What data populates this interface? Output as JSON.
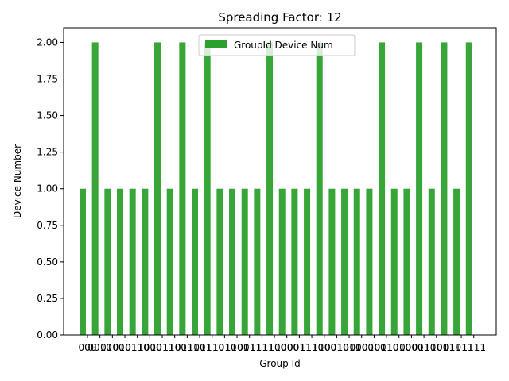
{
  "chart_data": {
    "type": "bar",
    "title": "Spreading Factor: 12",
    "xlabel": "Group Id",
    "ylabel": "Device Number",
    "ylim": [
      0,
      2.1
    ],
    "yticks": [
      "0.00",
      "0.25",
      "0.50",
      "0.75",
      "1.00",
      "1.25",
      "1.50",
      "1.75",
      "2.00"
    ],
    "categories": [
      "000",
      "0010",
      "0100",
      "0101",
      "0110",
      "1000",
      "1011",
      "1100",
      "0111",
      "1001",
      "1110",
      "1010",
      "1101",
      "0011",
      "1111",
      "1100",
      "1000",
      "0011",
      "1110",
      "1100",
      "0010",
      "1011",
      "0000",
      "0100",
      "0110",
      "1010",
      "0000",
      "0110",
      "1101",
      "0011",
      "1011",
      "1111"
    ],
    "series": [
      {
        "name": "GroupId Device Num",
        "color": "#2ca02c",
        "values": [
          1,
          2,
          1,
          1,
          1,
          1,
          2,
          1,
          2,
          1,
          2,
          1,
          1,
          1,
          1,
          2,
          1,
          1,
          1,
          2,
          1,
          1,
          1,
          1,
          2,
          1,
          1,
          2,
          1,
          2,
          1,
          2
        ]
      }
    ],
    "legend_position": "top-center",
    "grid": false
  }
}
